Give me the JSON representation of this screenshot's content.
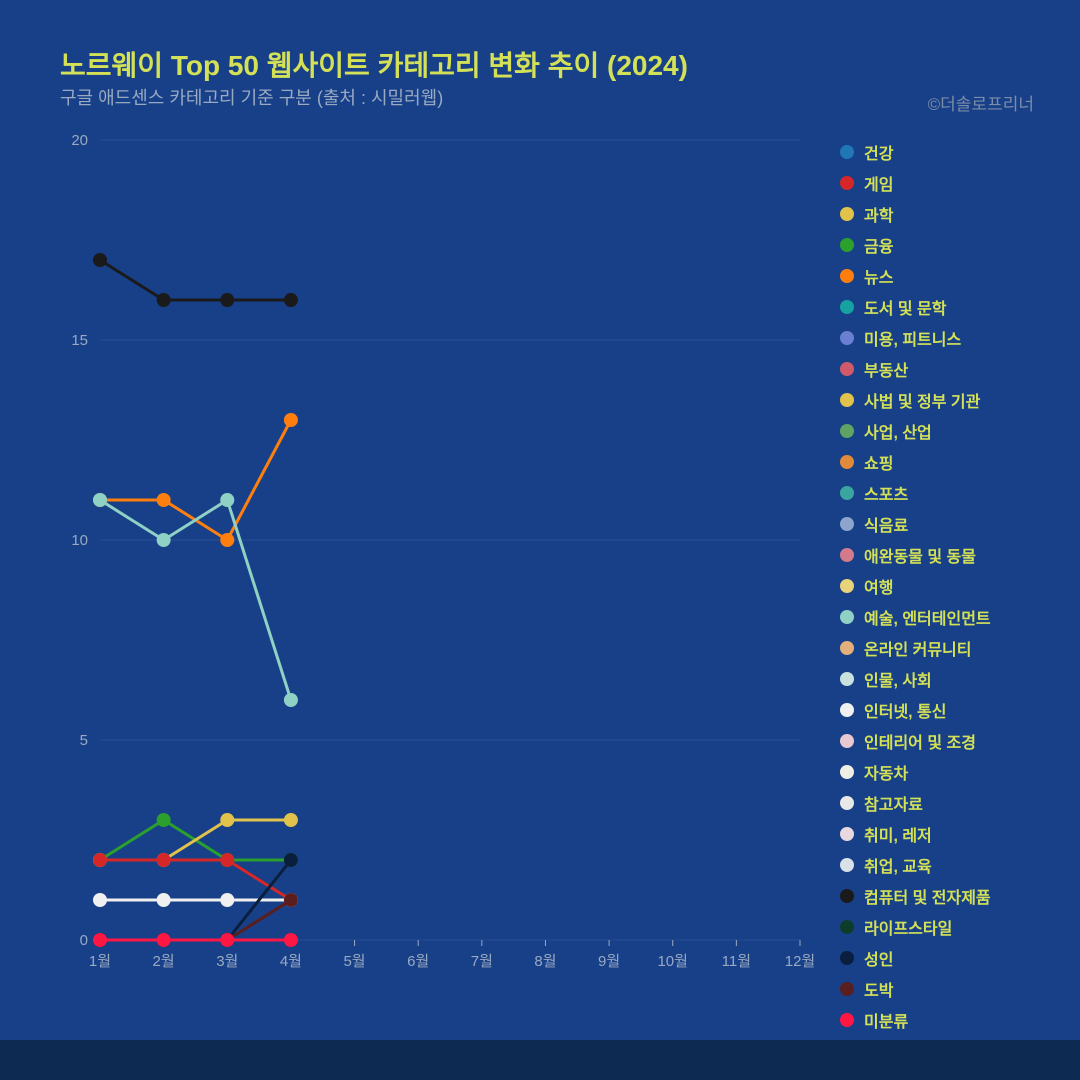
{
  "title": "노르웨이 Top 50 웹사이트 카테고리 변화 추이 (2024)",
  "subtitle": "구글 애드센스 카테고리 기준 구분 (출처 : 시밀러웹)",
  "credit": "©더솔로프리너",
  "chart": {
    "type": "line",
    "background_color": "#174088",
    "grid_color": "#3a5c9e",
    "axis_label_color": "#9aa9c2",
    "axis_label_fontsize": 15,
    "x_labels": [
      "1월",
      "2월",
      "3월",
      "4월",
      "5월",
      "6월",
      "7월",
      "8월",
      "9월",
      "10월",
      "11월",
      "12월"
    ],
    "y_min": 0,
    "y_max": 20,
    "y_ticks": [
      0,
      5,
      10,
      15,
      20
    ],
    "line_width": 3,
    "marker_radius": 7,
    "series": [
      {
        "name": "컴퓨터 및 전자제품",
        "color": "#1a1a1a",
        "values": [
          17,
          16,
          16,
          16
        ]
      },
      {
        "name": "뉴스",
        "color": "#ff7f0e",
        "values": [
          11,
          11,
          10,
          13
        ]
      },
      {
        "name": "예술, 엔터테인먼트",
        "color": "#8fd1c4",
        "values": [
          11,
          10,
          11,
          6
        ]
      },
      {
        "name": "금융",
        "color": "#2ca02c",
        "values": [
          2,
          3,
          2,
          2
        ]
      },
      {
        "name": "사법 및 정부 기관",
        "color": "#e1c24a",
        "values": [
          2,
          2,
          3,
          3
        ]
      },
      {
        "name": "게임",
        "color": "#d62728",
        "values": [
          2,
          2,
          2,
          1
        ]
      },
      {
        "name": "인터넷, 통신",
        "color": "#f0f0f0",
        "values": [
          1,
          1,
          1,
          1
        ]
      },
      {
        "name": "성인",
        "color": "#0a1f3d",
        "values": [
          0,
          0,
          0,
          2
        ]
      },
      {
        "name": "도박",
        "color": "#5a1e1e",
        "values": [
          0,
          0,
          0,
          1
        ]
      },
      {
        "name": "미분류",
        "color": "#ff1744",
        "values": [
          0,
          0,
          0,
          0
        ]
      }
    ]
  },
  "legend": {
    "label_color": "#d4e157",
    "label_fontsize": 16,
    "items": [
      {
        "label": "건강",
        "color": "#1f77b4"
      },
      {
        "label": "게임",
        "color": "#d62728"
      },
      {
        "label": "과학",
        "color": "#e1c24a"
      },
      {
        "label": "금융",
        "color": "#2ca02c"
      },
      {
        "label": "뉴스",
        "color": "#ff7f0e"
      },
      {
        "label": "도서 및 문학",
        "color": "#17a2a2"
      },
      {
        "label": "미용, 피트니스",
        "color": "#6a7fd1"
      },
      {
        "label": "부동산",
        "color": "#d15a6a"
      },
      {
        "label": "사법 및 정부 기관",
        "color": "#e1c24a"
      },
      {
        "label": "사업, 산업",
        "color": "#5fa463"
      },
      {
        "label": "쇼핑",
        "color": "#e08a3a"
      },
      {
        "label": "스포츠",
        "color": "#3aa59e"
      },
      {
        "label": "식음료",
        "color": "#8ea4cc"
      },
      {
        "label": "애완동물 및 동물",
        "color": "#d47a8a"
      },
      {
        "label": "여행",
        "color": "#e8d27a"
      },
      {
        "label": "예술, 엔터테인먼트",
        "color": "#8fd1c4"
      },
      {
        "label": "온라인 커뮤니티",
        "color": "#e3b07a"
      },
      {
        "label": "인물, 사회",
        "color": "#c9e2dd"
      },
      {
        "label": "인터넷, 통신",
        "color": "#f0f0f0"
      },
      {
        "label": "인테리어 및 조경",
        "color": "#e8c9d1"
      },
      {
        "label": "자동차",
        "color": "#efefe5"
      },
      {
        "label": "참고자료",
        "color": "#e8e8e8"
      },
      {
        "label": "취미, 레저",
        "color": "#e8d8e0"
      },
      {
        "label": "취업, 교육",
        "color": "#d8e0e8"
      },
      {
        "label": "컴퓨터 및 전자제품",
        "color": "#1a1a1a"
      },
      {
        "label": "라이프스타일",
        "color": "#0d3d2a"
      },
      {
        "label": "성인",
        "color": "#0a1f3d"
      },
      {
        "label": "도박",
        "color": "#5a1e1e"
      },
      {
        "label": "미분류",
        "color": "#ff1744"
      }
    ]
  }
}
